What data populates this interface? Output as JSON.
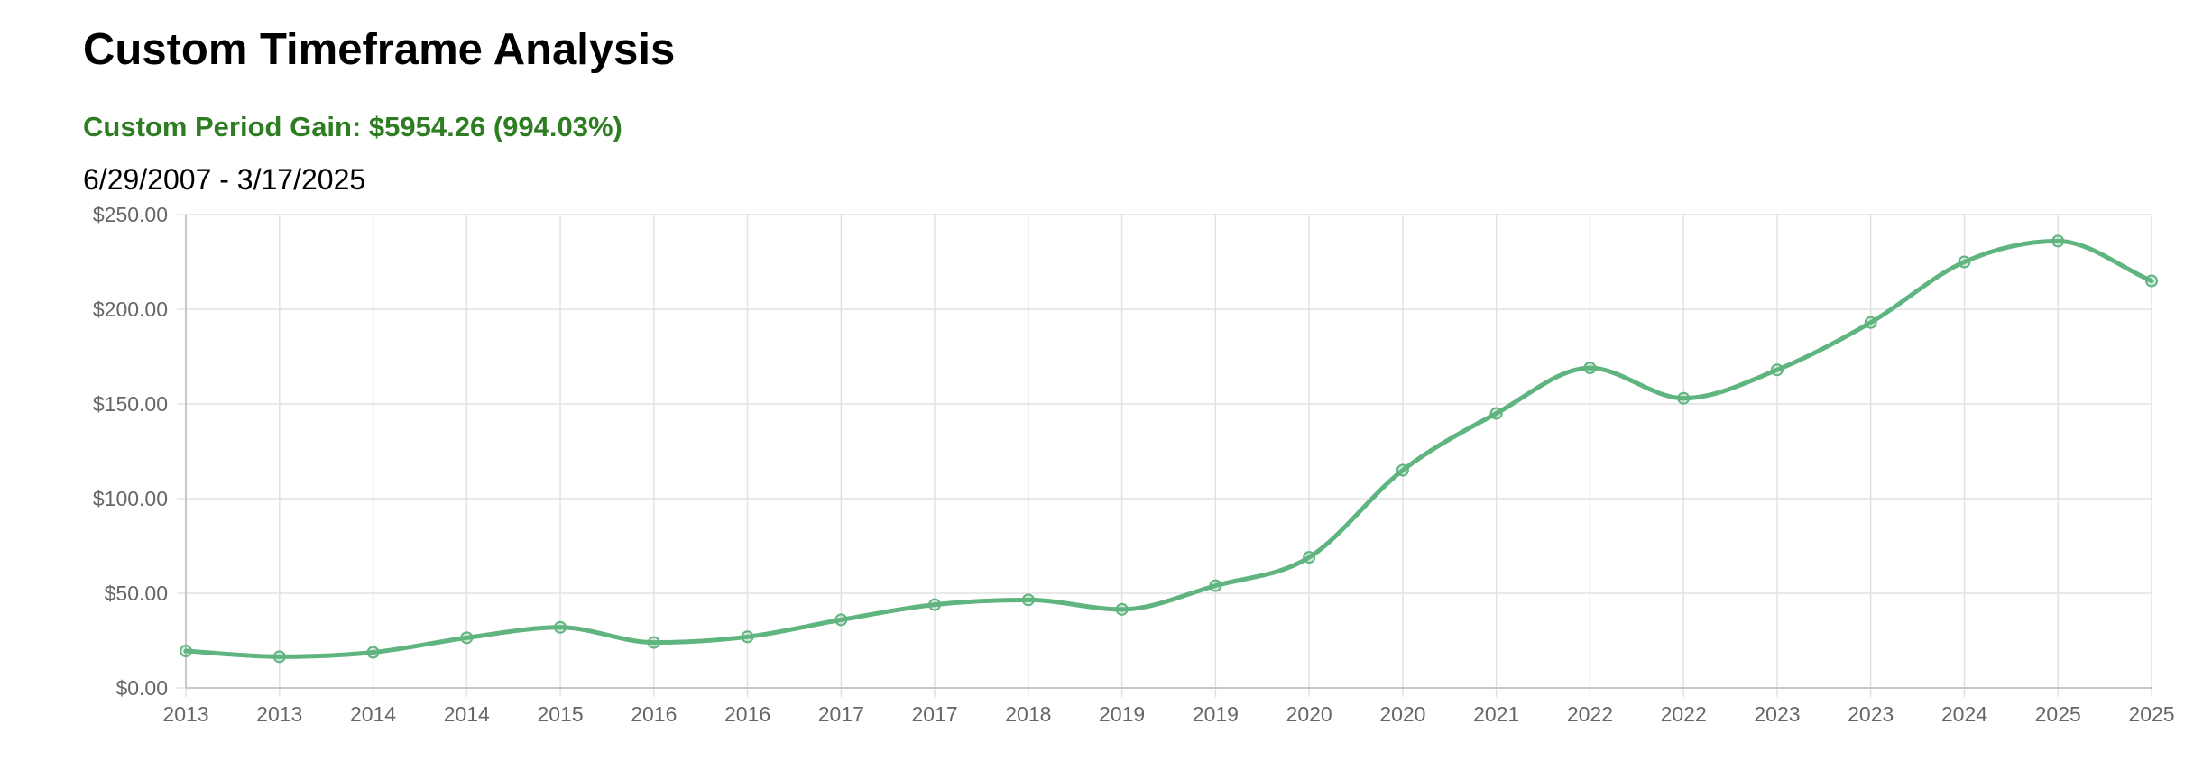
{
  "header": {
    "title": "Custom Timeframe Analysis",
    "gain_text": "Custom Period Gain: $5954.26 (994.03%)",
    "gain_color": "#2e7d22",
    "date_range": "6/29/2007 - 3/17/2025"
  },
  "chart_data": {
    "type": "line",
    "title": "",
    "xlabel": "",
    "ylabel": "",
    "categories": [
      "2013",
      "2013",
      "2014",
      "2014",
      "2015",
      "2016",
      "2016",
      "2017",
      "2017",
      "2018",
      "2019",
      "2019",
      "2020",
      "2020",
      "2021",
      "2022",
      "2022",
      "2023",
      "2023",
      "2024",
      "2025",
      "2025"
    ],
    "series": [
      {
        "values": [
          19.5,
          16.5,
          18.8,
          26.5,
          32,
          24,
          27,
          36,
          44,
          46.5,
          41.5,
          54,
          69,
          115,
          145,
          169,
          153,
          168,
          193,
          225,
          236,
          215
        ],
        "color": "#5fb47f",
        "smooth": true,
        "markers": "hollow-circle"
      }
    ],
    "ylim": [
      0,
      250
    ],
    "yticks": [
      0,
      50,
      100,
      150,
      200,
      250
    ],
    "ytick_labels": [
      "$0.00",
      "$50.00",
      "$100.00",
      "$150.00",
      "$200.00",
      "$250.00"
    ],
    "grid": true,
    "legend": "none"
  }
}
